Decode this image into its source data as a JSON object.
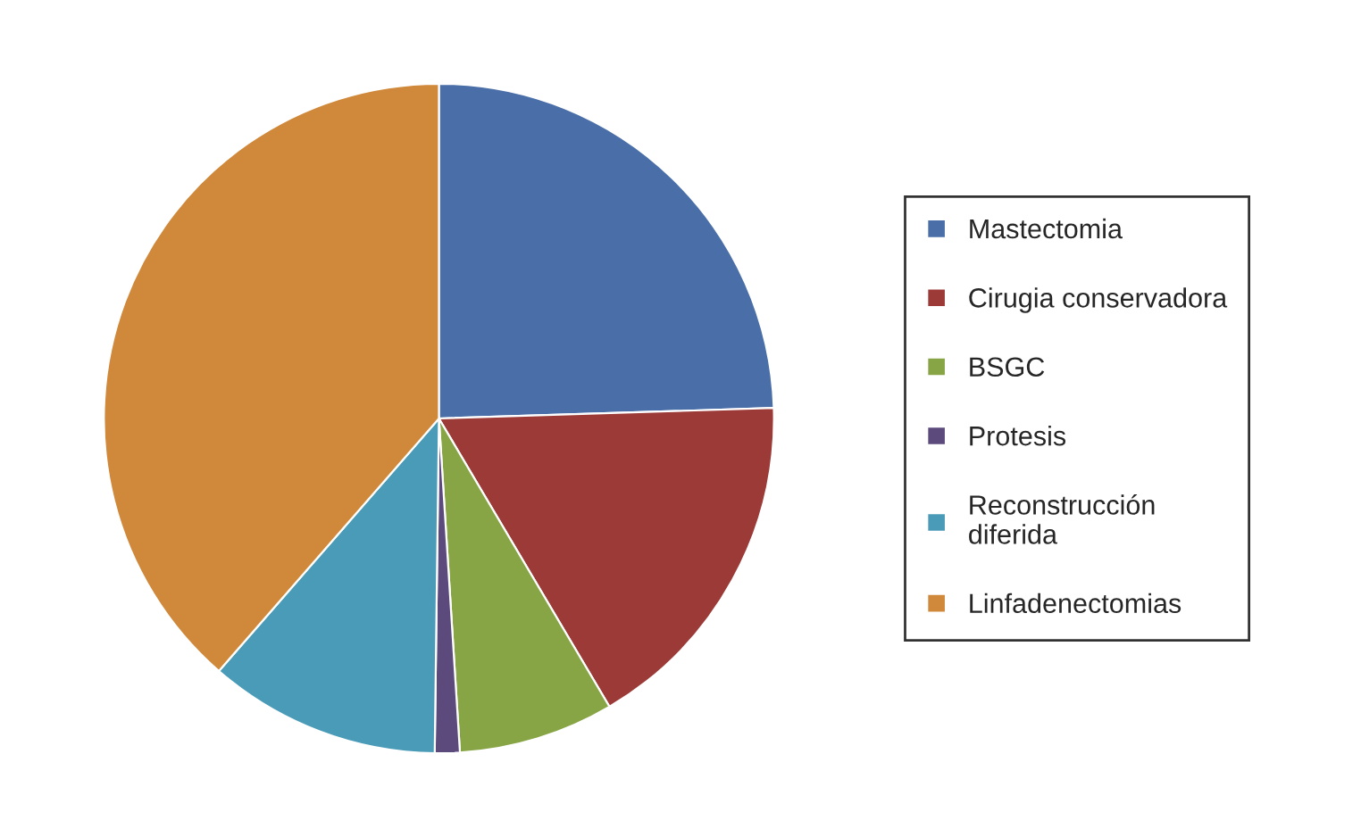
{
  "chart_data": {
    "type": "pie",
    "categories": [
      "Mastectomia",
      "Cirugia conservadora",
      "BSGC",
      "Protesis",
      "Reconstrucción\ndiferida",
      "Linfadenectomias"
    ],
    "values": [
      24.5,
      17,
      7.5,
      1.2,
      11.2,
      38.6
    ],
    "colors": [
      "#4a6fa8",
      "#9b3a36",
      "#87a545",
      "#5c4a7d",
      "#4a9bb8",
      "#d0883a"
    ],
    "legend": "right"
  }
}
